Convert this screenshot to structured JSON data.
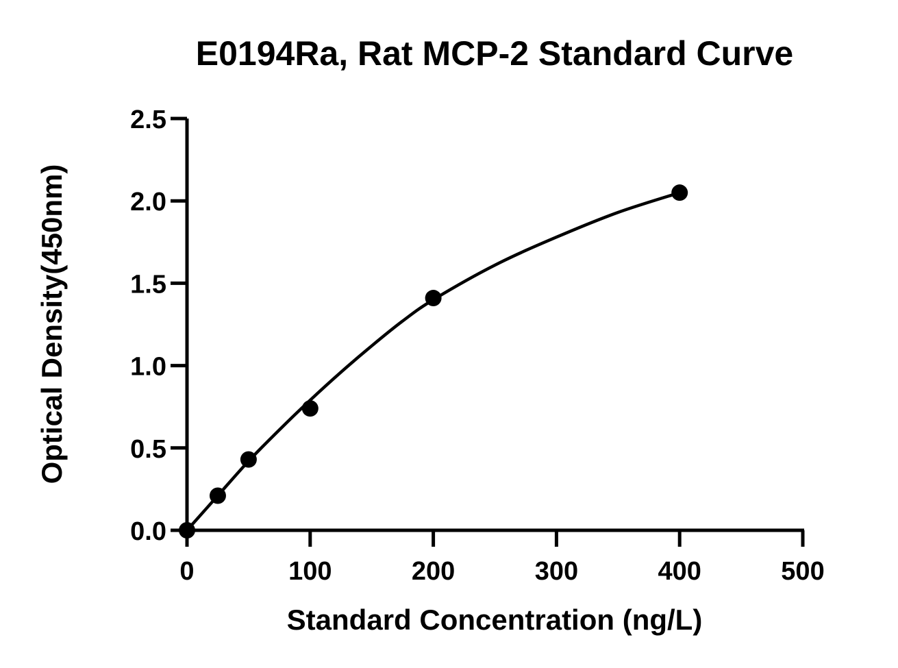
{
  "chart_data": {
    "type": "scatter",
    "title": "E0194Ra, Rat MCP-2  Standard Curve",
    "xlabel": "Standard Concentration (ng/L)",
    "ylabel": "Optical Density(450nm)",
    "xlim": [
      0,
      500
    ],
    "ylim": [
      0,
      2.5
    ],
    "x_ticks": [
      "0",
      "100",
      "200",
      "300",
      "400",
      "500"
    ],
    "y_ticks": [
      "0.0",
      "0.5",
      "1.0",
      "1.5",
      "2.0",
      "2.5"
    ],
    "grid": false,
    "legend": "none",
    "points": [
      {
        "x": 0,
        "y": 0.0
      },
      {
        "x": 25,
        "y": 0.21
      },
      {
        "x": 50,
        "y": 0.43
      },
      {
        "x": 100,
        "y": 0.74
      },
      {
        "x": 200,
        "y": 1.41
      },
      {
        "x": 400,
        "y": 2.05
      }
    ],
    "fit_curve": {
      "type": "smooth",
      "x": [
        0,
        25,
        50,
        75,
        100,
        125,
        150,
        175,
        200,
        250,
        300,
        350,
        400
      ],
      "y": [
        0.0,
        0.21,
        0.42,
        0.61,
        0.79,
        0.96,
        1.12,
        1.27,
        1.4,
        1.61,
        1.78,
        1.93,
        2.05
      ]
    },
    "colors": {
      "marks": "#000000",
      "axes": "#000000",
      "background": "#ffffff"
    }
  }
}
